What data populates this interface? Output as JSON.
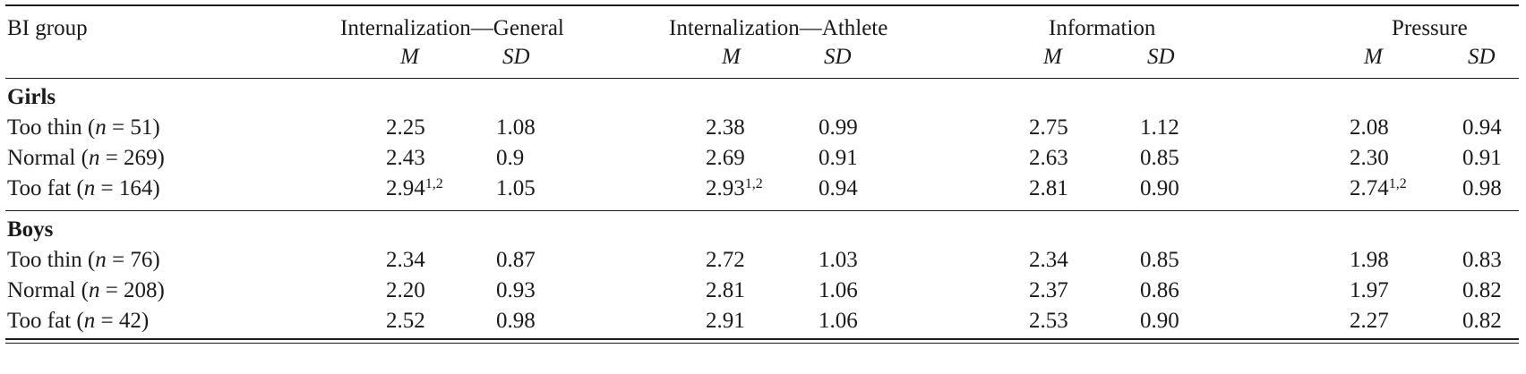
{
  "table": {
    "header": {
      "group_label": "BI group",
      "col_groups": [
        "Internalization—General",
        "Internalization—Athlete",
        "Information",
        "Pressure"
      ],
      "m_label": "M",
      "sd_label": "SD"
    },
    "sections": [
      {
        "title": "Girls",
        "rows": [
          {
            "label_pre": "Too thin (",
            "n_var": "n",
            "label_post": " = 51)",
            "ig_m": "2.25",
            "ig_sup": "",
            "ig_sd": "1.08",
            "ia_m": "2.38",
            "ia_sup": "",
            "ia_sd": "0.99",
            "in_m": "2.75",
            "in_sd": "1.12",
            "pr_m": "2.08",
            "pr_sup": "",
            "pr_sd": "0.94"
          },
          {
            "label_pre": "Normal (",
            "n_var": "n",
            "label_post": " = 269)",
            "ig_m": "2.43",
            "ig_sup": "",
            "ig_sd": "0.9",
            "ia_m": "2.69",
            "ia_sup": "",
            "ia_sd": "0.91",
            "in_m": "2.63",
            "in_sd": "0.85",
            "pr_m": "2.30",
            "pr_sup": "",
            "pr_sd": "0.91"
          },
          {
            "label_pre": "Too fat (",
            "n_var": "n",
            "label_post": " = 164)",
            "ig_m": "2.94",
            "ig_sup": "1,2",
            "ig_sd": "1.05",
            "ia_m": "2.93",
            "ia_sup": "1,2",
            "ia_sd": "0.94",
            "in_m": "2.81",
            "in_sd": "0.90",
            "pr_m": "2.74",
            "pr_sup": "1,2",
            "pr_sd": "0.98"
          }
        ]
      },
      {
        "title": "Boys",
        "rows": [
          {
            "label_pre": "Too thin (",
            "n_var": "n",
            "label_post": " = 76)",
            "ig_m": "2.34",
            "ig_sup": "",
            "ig_sd": "0.87",
            "ia_m": "2.72",
            "ia_sup": "",
            "ia_sd": "1.03",
            "in_m": "2.34",
            "in_sd": "0.85",
            "pr_m": "1.98",
            "pr_sup": "",
            "pr_sd": "0.83"
          },
          {
            "label_pre": "Normal (",
            "n_var": "n",
            "label_post": " = 208)",
            "ig_m": "2.20",
            "ig_sup": "",
            "ig_sd": "0.93",
            "ia_m": "2.81",
            "ia_sup": "",
            "ia_sd": "1.06",
            "in_m": "2.37",
            "in_sd": "0.86",
            "pr_m": "1.97",
            "pr_sup": "",
            "pr_sd": "0.82"
          },
          {
            "label_pre": "Too fat (",
            "n_var": "n",
            "label_post": " = 42)",
            "ig_m": "2.52",
            "ig_sup": "",
            "ig_sd": "0.98",
            "ia_m": "2.91",
            "ia_sup": "",
            "ia_sd": "1.06",
            "in_m": "2.53",
            "in_sd": "0.90",
            "pr_m": "2.27",
            "pr_sup": "",
            "pr_sd": "0.82"
          }
        ]
      }
    ]
  }
}
